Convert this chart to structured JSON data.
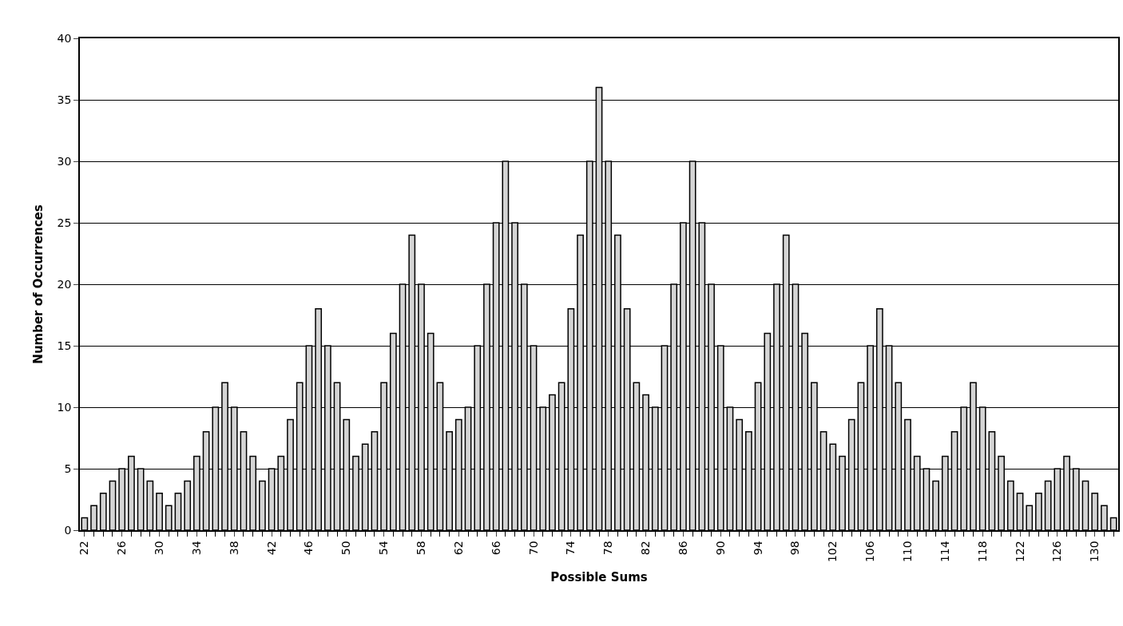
{
  "chart_data": {
    "type": "bar",
    "xlabel": "Possible Sums",
    "ylabel": "Number of Occurrences",
    "categories": [
      "22",
      null,
      null,
      null,
      "26",
      null,
      null,
      null,
      "30",
      null,
      null,
      null,
      "34",
      null,
      null,
      null,
      "38",
      null,
      null,
      null,
      "42",
      null,
      null,
      null,
      "46",
      null,
      null,
      null,
      "50",
      null,
      null,
      null,
      "54",
      null,
      null,
      null,
      "58",
      null,
      null,
      null,
      "62",
      null,
      null,
      null,
      "66",
      null,
      null,
      null,
      "70",
      null,
      null,
      null,
      "74",
      null,
      null,
      null,
      "78",
      null,
      null,
      null,
      "82",
      null,
      null,
      null,
      "86",
      null,
      null,
      null,
      "90",
      null,
      null,
      null,
      "94",
      null,
      null,
      null,
      "98",
      null,
      null,
      null,
      "102",
      null,
      null,
      null,
      "106",
      null,
      null,
      null,
      "110",
      null,
      null,
      null,
      "114",
      null,
      null,
      null,
      "118",
      null,
      null,
      null,
      "122",
      null,
      null,
      null,
      "126",
      null,
      null,
      null,
      "130",
      null,
      null
    ],
    "values": [
      1,
      2,
      3,
      4,
      5,
      6,
      5,
      4,
      3,
      2,
      3,
      4,
      6,
      8,
      10,
      12,
      10,
      8,
      6,
      4,
      5,
      6,
      9,
      12,
      15,
      18,
      15,
      12,
      9,
      6,
      7,
      8,
      12,
      16,
      20,
      24,
      20,
      16,
      12,
      8,
      9,
      10,
      15,
      20,
      25,
      30,
      25,
      20,
      15,
      10,
      11,
      12,
      18,
      24,
      30,
      36,
      30,
      24,
      18,
      12,
      11,
      10,
      15,
      20,
      25,
      30,
      25,
      20,
      15,
      10,
      9,
      8,
      12,
      16,
      20,
      24,
      20,
      16,
      12,
      8,
      7,
      6,
      9,
      12,
      15,
      18,
      15,
      12,
      9,
      6,
      5,
      4,
      6,
      8,
      10,
      12,
      10,
      8,
      6,
      4,
      3,
      2,
      3,
      4,
      5,
      6,
      5,
      4,
      3,
      2,
      1
    ],
    "color": "#d4d4d4",
    "ylim": [
      0,
      40
    ],
    "yticks": [
      0,
      5,
      10,
      15,
      20,
      25,
      30,
      35,
      40
    ],
    "grid": "y"
  }
}
